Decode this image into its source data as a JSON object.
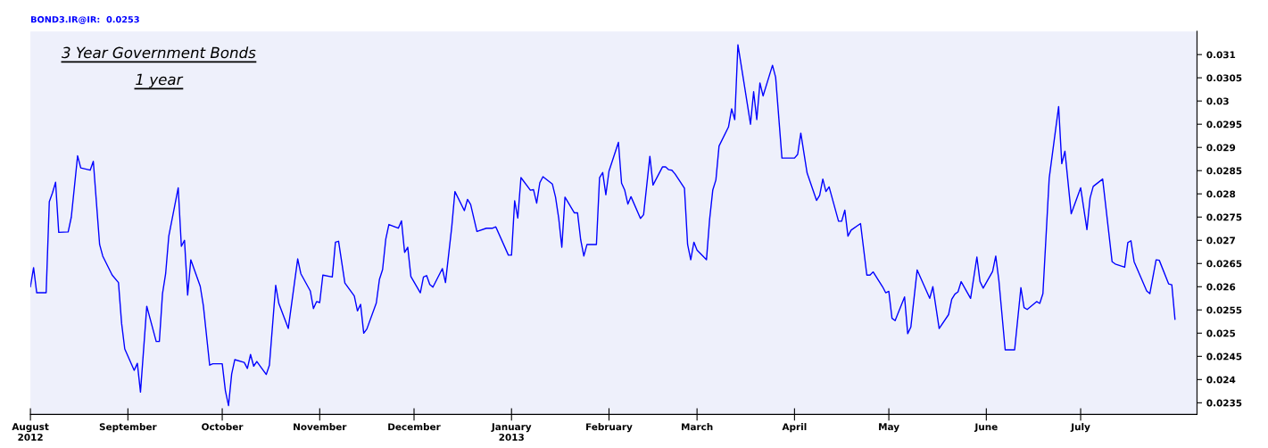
{
  "chart_data": {
    "type": "line",
    "title": "3 Year Government Bonds",
    "subtitle": "1 year",
    "annotations": [
      "BOND3.IR@IR:  0.0253"
    ],
    "x": [
      "2012-08-01",
      "2012-08-02",
      "2012-08-03",
      "2012-08-06",
      "2012-08-07",
      "2012-08-08",
      "2012-08-09",
      "2012-08-10",
      "2012-08-13",
      "2012-08-14",
      "2012-08-16",
      "2012-08-17",
      "2012-08-20",
      "2012-08-21",
      "2012-08-23",
      "2012-08-24",
      "2012-08-27",
      "2012-08-29",
      "2012-08-30",
      "2012-08-31",
      "2012-09-03",
      "2012-09-04",
      "2012-09-05",
      "2012-09-07",
      "2012-09-10",
      "2012-09-11",
      "2012-09-12",
      "2012-09-13",
      "2012-09-14",
      "2012-09-17",
      "2012-09-18",
      "2012-09-19",
      "2012-09-20",
      "2012-09-21",
      "2012-09-24",
      "2012-09-25",
      "2012-09-27",
      "2012-09-28",
      "2012-10-01",
      "2012-10-02",
      "2012-10-03",
      "2012-10-04",
      "2012-10-05",
      "2012-10-08",
      "2012-10-09",
      "2012-10-10",
      "2012-10-11",
      "2012-10-12",
      "2012-10-15",
      "2012-10-16",
      "2012-10-18",
      "2012-10-19",
      "2012-10-22",
      "2012-10-25",
      "2012-10-26",
      "2012-10-29",
      "2012-10-30",
      "2012-10-31",
      "2012-11-01",
      "2012-11-02",
      "2012-11-05",
      "2012-11-06",
      "2012-11-07",
      "2012-11-09",
      "2012-11-12",
      "2012-11-13",
      "2012-11-14",
      "2012-11-15",
      "2012-11-16",
      "2012-11-19",
      "2012-11-20",
      "2012-11-21",
      "2012-11-22",
      "2012-11-23",
      "2012-11-26",
      "2012-11-27",
      "2012-11-28",
      "2012-11-29",
      "2012-11-30",
      "2012-12-03",
      "2012-12-04",
      "2012-12-05",
      "2012-12-06",
      "2012-12-07",
      "2012-12-10",
      "2012-12-11",
      "2012-12-13",
      "2012-12-14",
      "2012-12-17",
      "2012-12-18",
      "2012-12-19",
      "2012-12-21",
      "2012-12-24",
      "2012-12-26",
      "2012-12-27",
      "2012-12-31",
      "2013-01-01",
      "2013-01-02",
      "2013-01-03",
      "2013-01-04",
      "2013-01-07",
      "2013-01-08",
      "2013-01-09",
      "2013-01-10",
      "2013-01-11",
      "2013-01-14",
      "2013-01-15",
      "2013-01-16",
      "2013-01-17",
      "2013-01-18",
      "2013-01-21",
      "2013-01-22",
      "2013-01-23",
      "2013-01-24",
      "2013-01-25",
      "2013-01-28",
      "2013-01-29",
      "2013-01-30",
      "2013-01-31",
      "2013-02-01",
      "2013-02-04",
      "2013-02-05",
      "2013-02-06",
      "2013-02-07",
      "2013-02-08",
      "2013-02-11",
      "2013-02-12",
      "2013-02-14",
      "2013-02-15",
      "2013-02-18",
      "2013-02-19",
      "2013-02-20",
      "2013-02-21",
      "2013-02-22",
      "2013-02-25",
      "2013-02-26",
      "2013-02-27",
      "2013-02-28",
      "2013-03-01",
      "2013-03-04",
      "2013-03-05",
      "2013-03-06",
      "2013-03-07",
      "2013-03-08",
      "2013-03-11",
      "2013-03-12",
      "2013-03-13",
      "2013-03-14",
      "2013-03-16",
      "2013-03-18",
      "2013-03-19",
      "2013-03-20",
      "2013-03-21",
      "2013-03-22",
      "2013-03-25",
      "2013-03-26",
      "2013-03-28",
      "2013-04-01",
      "2013-04-02",
      "2013-04-03",
      "2013-04-05",
      "2013-04-08",
      "2013-04-09",
      "2013-04-10",
      "2013-04-11",
      "2013-04-12",
      "2013-04-15",
      "2013-04-16",
      "2013-04-17",
      "2013-04-18",
      "2013-04-19",
      "2013-04-22",
      "2013-04-24",
      "2013-04-25",
      "2013-04-26",
      "2013-04-29",
      "2013-04-30",
      "2013-05-01",
      "2013-05-02",
      "2013-05-03",
      "2013-05-06",
      "2013-05-07",
      "2013-05-08",
      "2013-05-10",
      "2013-05-14",
      "2013-05-15",
      "2013-05-17",
      "2013-05-20",
      "2013-05-21",
      "2013-05-22",
      "2013-05-23",
      "2013-05-24",
      "2013-05-27",
      "2013-05-29",
      "2013-05-30",
      "2013-05-31",
      "2013-06-03",
      "2013-06-04",
      "2013-06-05",
      "2013-06-07",
      "2013-06-10",
      "2013-06-12",
      "2013-06-13",
      "2013-06-14",
      "2013-06-17",
      "2013-06-18",
      "2013-06-19",
      "2013-06-21",
      "2013-06-24",
      "2013-06-25",
      "2013-06-26",
      "2013-06-28",
      "2013-07-01",
      "2013-07-03",
      "2013-07-04",
      "2013-07-05",
      "2013-07-08",
      "2013-07-11",
      "2013-07-12",
      "2013-07-15",
      "2013-07-16",
      "2013-07-17",
      "2013-07-18",
      "2013-07-22",
      "2013-07-23",
      "2013-07-25",
      "2013-07-26",
      "2013-07-29",
      "2013-07-30",
      "2013-07-31"
    ],
    "series": [
      {
        "color": "#0000ff",
        "values": [
          0.026,
          0.02641,
          0.02587,
          0.02587,
          0.02783,
          0.02802,
          0.02825,
          0.02717,
          0.02718,
          0.0275,
          0.02882,
          0.02856,
          0.02851,
          0.0287,
          0.02691,
          0.02666,
          0.02625,
          0.02609,
          0.02521,
          0.02466,
          0.0242,
          0.02435,
          0.02373,
          0.02558,
          0.02482,
          0.02482,
          0.02585,
          0.02628,
          0.02709,
          0.02813,
          0.02687,
          0.027,
          0.02582,
          0.02658,
          0.02601,
          0.02559,
          0.02431,
          0.02434,
          0.02434,
          0.02376,
          0.02344,
          0.02412,
          0.02443,
          0.02437,
          0.02424,
          0.02454,
          0.02429,
          0.02439,
          0.02411,
          0.02431,
          0.02603,
          0.02564,
          0.0251,
          0.0266,
          0.02628,
          0.02591,
          0.02553,
          0.02568,
          0.02566,
          0.02625,
          0.02621,
          0.02696,
          0.02698,
          0.02608,
          0.0258,
          0.02548,
          0.02562,
          0.025,
          0.02509,
          0.02565,
          0.02616,
          0.02637,
          0.02702,
          0.02734,
          0.02726,
          0.02742,
          0.02674,
          0.02685,
          0.02622,
          0.02587,
          0.02621,
          0.02624,
          0.02605,
          0.02599,
          0.02639,
          0.02609,
          0.02729,
          0.02805,
          0.02764,
          0.02788,
          0.02777,
          0.02719,
          0.02726,
          0.02726,
          0.02729,
          0.02668,
          0.02668,
          0.02785,
          0.02748,
          0.02835,
          0.02808,
          0.02809,
          0.0278,
          0.02824,
          0.02837,
          0.02821,
          0.02793,
          0.02748,
          0.02685,
          0.02793,
          0.02759,
          0.02759,
          0.02701,
          0.02666,
          0.02691,
          0.02691,
          0.02835,
          0.02846,
          0.02798,
          0.02849,
          0.02911,
          0.02823,
          0.02808,
          0.02778,
          0.02794,
          0.02747,
          0.02755,
          0.02881,
          0.02819,
          0.02858,
          0.02858,
          0.02852,
          0.02851,
          0.02843,
          0.02812,
          0.02691,
          0.02658,
          0.02696,
          0.02679,
          0.02658,
          0.02745,
          0.02808,
          0.0283,
          0.02903,
          0.02944,
          0.02983,
          0.0296,
          0.03121,
          0.03036,
          0.0295,
          0.0302,
          0.0296,
          0.03039,
          0.03011,
          0.03077,
          0.03051,
          0.02877,
          0.02877,
          0.02885,
          0.02931,
          0.02845,
          0.02786,
          0.02797,
          0.02832,
          0.02805,
          0.02815,
          0.02741,
          0.02741,
          0.02765,
          0.02709,
          0.02722,
          0.02736,
          0.02625,
          0.02625,
          0.02632,
          0.026,
          0.02587,
          0.0259,
          0.02532,
          0.02527,
          0.02578,
          0.02499,
          0.02513,
          0.02636,
          0.02575,
          0.026,
          0.0251,
          0.0254,
          0.02573,
          0.02584,
          0.02589,
          0.02611,
          0.02575,
          0.02664,
          0.02611,
          0.02597,
          0.02633,
          0.02666,
          0.02613,
          0.02464,
          0.02464,
          0.02598,
          0.02555,
          0.02551,
          0.02568,
          0.02564,
          0.02585,
          0.02834,
          0.02988,
          0.02865,
          0.02892,
          0.02757,
          0.02813,
          0.02723,
          0.02791,
          0.02816,
          0.02832,
          0.02654,
          0.02649,
          0.02642,
          0.02695,
          0.02699,
          0.02654,
          0.02591,
          0.02585,
          0.02658,
          0.02657,
          0.02606,
          0.02604,
          0.0253
        ]
      }
    ],
    "xlim": [
      "2012-08-01",
      "2013-08-07"
    ],
    "ylim": [
      0.02325,
      0.0315
    ],
    "xticks": [
      {
        "value": "2012-08-01",
        "label": "August\n2012"
      },
      {
        "value": "2012-09-01",
        "label": "September"
      },
      {
        "value": "2012-10-01",
        "label": "October"
      },
      {
        "value": "2012-11-01",
        "label": "November"
      },
      {
        "value": "2012-12-01",
        "label": "December"
      },
      {
        "value": "2013-01-01",
        "label": "January\n2013"
      },
      {
        "value": "2013-02-01",
        "label": "February"
      },
      {
        "value": "2013-03-01",
        "label": "March"
      },
      {
        "value": "2013-04-01",
        "label": "April"
      },
      {
        "value": "2013-05-01",
        "label": "May"
      },
      {
        "value": "2013-06-01",
        "label": "June"
      },
      {
        "value": "2013-07-01",
        "label": "July"
      }
    ],
    "yticks": [
      0.0235,
      0.024,
      0.0245,
      0.025,
      0.0255,
      0.026,
      0.0265,
      0.027,
      0.0275,
      0.028,
      0.0285,
      0.029,
      0.0295,
      0.03,
      0.0305,
      0.031
    ],
    "grid": false,
    "legend": false,
    "marker": "none",
    "line_style": "solid"
  }
}
